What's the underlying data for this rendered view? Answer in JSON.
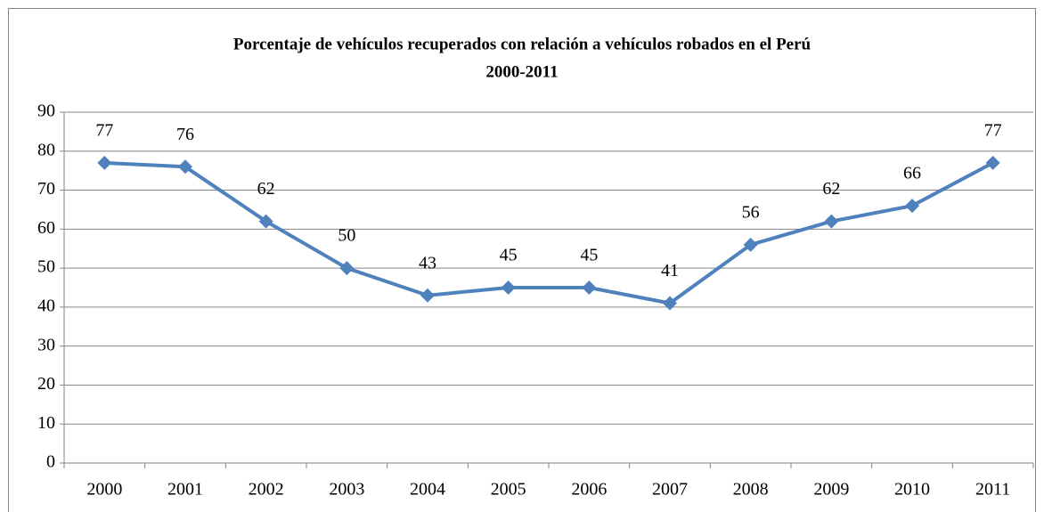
{
  "chart_data": {
    "type": "line",
    "title": "Porcentaje de vehículos recuperados con relación a vehículos robados en el Perú",
    "subtitle": "2000-2011",
    "categories": [
      "2000",
      "2001",
      "2002",
      "2003",
      "2004",
      "2005",
      "2006",
      "2007",
      "2008",
      "2009",
      "2010",
      "2011"
    ],
    "values": [
      77,
      76,
      62,
      50,
      43,
      45,
      45,
      41,
      56,
      62,
      66,
      77
    ],
    "color": "#4f81bd",
    "ylim": [
      0,
      90
    ],
    "yticks": [
      0,
      10,
      20,
      30,
      40,
      50,
      60,
      70,
      80,
      90
    ],
    "grid": true
  }
}
